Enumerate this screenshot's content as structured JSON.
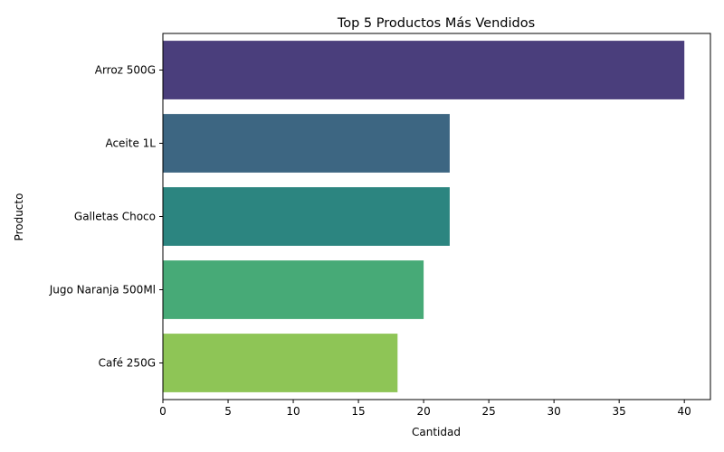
{
  "chart_data": {
    "type": "bar",
    "orientation": "horizontal",
    "title": "Top 5 Productos Más Vendidos",
    "xlabel": "Cantidad",
    "ylabel": "Producto",
    "categories": [
      "Arroz 500G",
      "Aceite 1L",
      "Galletas Choco",
      "Jugo Naranja 500Ml",
      "Café 250G"
    ],
    "values": [
      40,
      22,
      22,
      20,
      18
    ],
    "colors": [
      "#4a3e7c",
      "#3d6682",
      "#2c8580",
      "#47aa77",
      "#8ec556"
    ],
    "xlim": [
      0,
      42
    ],
    "xticks": [
      0,
      5,
      10,
      15,
      20,
      25,
      30,
      35,
      40
    ],
    "grid": false,
    "legend": false
  }
}
